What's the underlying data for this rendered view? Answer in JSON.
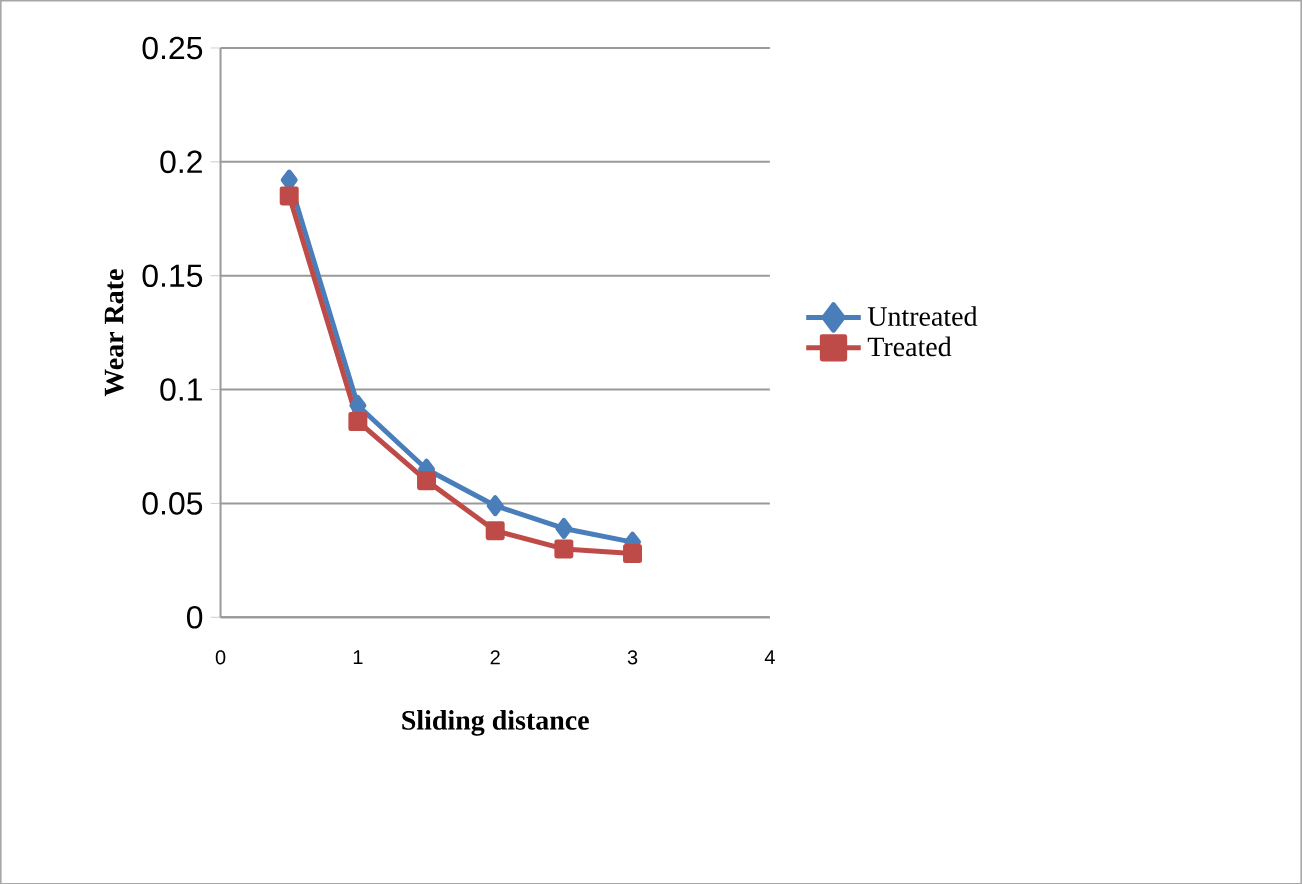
{
  "chart_data": {
    "type": "line",
    "xlabel": "Sliding distance",
    "ylabel": "Wear Rate",
    "xlim": [
      0,
      4
    ],
    "xticks": [
      0,
      1,
      2,
      3,
      4
    ],
    "ylim": [
      0,
      0.25
    ],
    "yticks": [
      0,
      0.05,
      0.1,
      0.15,
      0.2,
      0.25
    ],
    "grid": "y",
    "legend": "right",
    "series": [
      {
        "name": "Untreated",
        "color": "#4a7ebb",
        "marker": "diamond",
        "x": [
          0.5,
          1,
          1.5,
          2,
          2.5,
          3
        ],
        "values": [
          0.192,
          0.093,
          0.065,
          0.049,
          0.039,
          0.033
        ]
      },
      {
        "name": "Treated",
        "color": "#be4b48",
        "marker": "square",
        "x": [
          0.5,
          1,
          1.5,
          2,
          2.5,
          3
        ],
        "values": [
          0.185,
          0.086,
          0.06,
          0.038,
          0.03,
          0.028
        ]
      }
    ]
  }
}
